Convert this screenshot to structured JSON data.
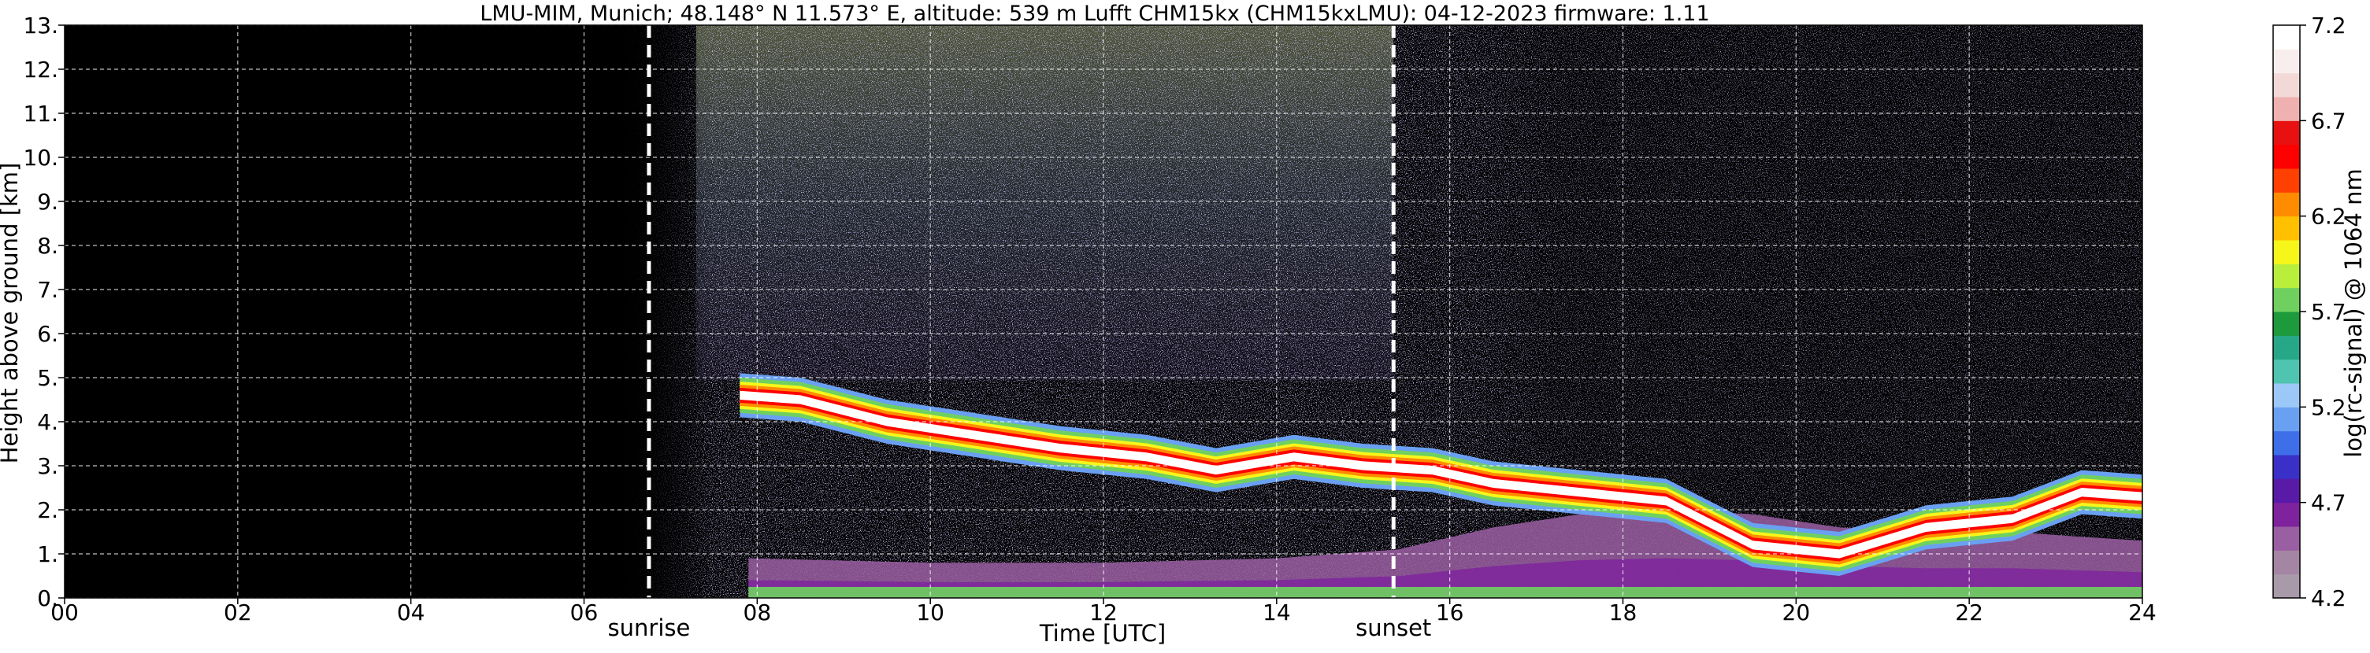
{
  "chart_data": {
    "type": "heatmap",
    "title": "LMU-MIM, Munich; 48.148° N 11.573° E, altitude: 539 m    Lufft CHM15kx (CHM15kxLMU): 04-12-2023    firmware: 1.11",
    "xlabel": "Time [UTC]",
    "ylabel": "Height above ground [km]",
    "xlim": [
      0,
      24
    ],
    "ylim": [
      0,
      13
    ],
    "xticks": [
      "00",
      "02",
      "04",
      "06",
      "08",
      "10",
      "12",
      "14",
      "16",
      "18",
      "20",
      "22",
      "24"
    ],
    "yticks": [
      "0.",
      "1.",
      "2.",
      "3.",
      "4.",
      "5.",
      "6.",
      "7.",
      "8.",
      "9.",
      "10.",
      "11.",
      "12.",
      "13."
    ],
    "grid": true,
    "markers": [
      {
        "label": "sunrise",
        "time": 6.75
      },
      {
        "label": "sunset",
        "time": 15.35
      }
    ],
    "colorbar": {
      "label": "log(rc-signal) @ 1064 nm",
      "range": [
        4.2,
        7.2
      ],
      "ticks": [
        "4.2",
        "4.7",
        "5.2",
        "5.7",
        "6.2",
        "6.7",
        "7.2"
      ],
      "colors": [
        "#a89aa8",
        "#a485a4",
        "#9a5ea2",
        "#7e229e",
        "#5a1aa8",
        "#3a30c8",
        "#3f6fe8",
        "#6aa0f2",
        "#9cc8f7",
        "#4fc4b0",
        "#26a888",
        "#1c9a3c",
        "#6fd060",
        "#b9ee3c",
        "#f6f61a",
        "#ffc000",
        "#ff8c00",
        "#ff4000",
        "#ff0000",
        "#e81010",
        "#efb0b0",
        "#f3d8d8",
        "#f8eeee",
        "#ffffff"
      ]
    },
    "layers": [
      {
        "name": "cloud layer (high signal)",
        "points": [
          [
            7.8,
            4.6
          ],
          [
            8.5,
            4.5
          ],
          [
            9.5,
            4.0
          ],
          [
            10.5,
            3.7
          ],
          [
            11.5,
            3.4
          ],
          [
            12.5,
            3.2
          ],
          [
            13.3,
            2.9
          ],
          [
            14.2,
            3.2
          ],
          [
            15.0,
            3.0
          ],
          [
            15.8,
            2.9
          ],
          [
            16.5,
            2.6
          ],
          [
            17.5,
            2.4
          ],
          [
            18.5,
            2.2
          ],
          [
            19.5,
            1.2
          ],
          [
            20.5,
            1.0
          ],
          [
            21.5,
            1.6
          ],
          [
            22.5,
            1.8
          ],
          [
            23.3,
            2.4
          ],
          [
            24.0,
            2.3
          ]
        ]
      },
      {
        "name": "boundary layer (aerosol)",
        "points": [
          [
            7.9,
            0.9
          ],
          [
            10,
            0.8
          ],
          [
            12,
            0.8
          ],
          [
            14,
            0.9
          ],
          [
            15.4,
            1.1
          ],
          [
            16.5,
            1.6
          ],
          [
            17.5,
            1.9
          ],
          [
            18.5,
            2.0
          ],
          [
            19.5,
            1.9
          ],
          [
            20.5,
            1.6
          ],
          [
            21.5,
            1.5
          ],
          [
            22.5,
            1.5
          ],
          [
            23.2,
            1.4
          ],
          [
            24,
            1.3
          ]
        ]
      }
    ]
  }
}
